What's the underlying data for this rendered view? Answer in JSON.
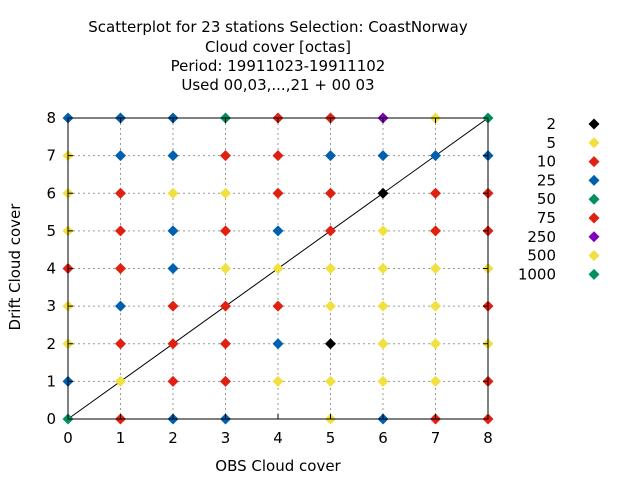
{
  "chart_data": {
    "type": "scatter",
    "title_lines": [
      "Scatterplot for   23 stations Selection: CoastNorway",
      "Cloud cover [octas]",
      "Period: 19911023-19911102",
      "Used  00,03,...,21  + 00 03"
    ],
    "xlabel": "OBS Cloud cover",
    "ylabel": "Drift Cloud cover",
    "xlim": [
      0,
      8
    ],
    "ylim": [
      0,
      8
    ],
    "xticks": [
      "0",
      "1",
      "2",
      "3",
      "4",
      "5",
      "6",
      "7",
      "8"
    ],
    "yticks": [
      "0",
      "1",
      "2",
      "3",
      "4",
      "5",
      "6",
      "7",
      "8"
    ],
    "grid": true,
    "diagonal_line": true,
    "legend_position": "right",
    "legend": [
      {
        "label": "2",
        "color": "#000000"
      },
      {
        "label": "5",
        "color": "#f0e040"
      },
      {
        "label": "10",
        "color": "#e02010"
      },
      {
        "label": "25",
        "color": "#0060b0"
      },
      {
        "label": "50",
        "color": "#009060"
      },
      {
        "label": "75",
        "color": "#e02010"
      },
      {
        "label": "250",
        "color": "#8000c0"
      },
      {
        "label": "500",
        "color": "#f0e040"
      },
      {
        "label": "1000",
        "color": "#009060"
      }
    ],
    "points": [
      {
        "x": 0,
        "y": 0,
        "c": 4
      },
      {
        "x": 1,
        "y": 0,
        "c": 2
      },
      {
        "x": 2,
        "y": 0,
        "c": 3
      },
      {
        "x": 3,
        "y": 0,
        "c": 3
      },
      {
        "x": 5,
        "y": 0,
        "c": 1
      },
      {
        "x": 6,
        "y": 0,
        "c": 3
      },
      {
        "x": 7,
        "y": 0,
        "c": 2
      },
      {
        "x": 8,
        "y": 0,
        "c": 2
      },
      {
        "x": 0,
        "y": 1,
        "c": 3
      },
      {
        "x": 1,
        "y": 1,
        "c": 1
      },
      {
        "x": 2,
        "y": 1,
        "c": 2
      },
      {
        "x": 3,
        "y": 1,
        "c": 2
      },
      {
        "x": 4,
        "y": 1,
        "c": 1
      },
      {
        "x": 5,
        "y": 1,
        "c": 1
      },
      {
        "x": 6,
        "y": 1,
        "c": 1
      },
      {
        "x": 7,
        "y": 1,
        "c": 1
      },
      {
        "x": 8,
        "y": 1,
        "c": 2
      },
      {
        "x": 0,
        "y": 2,
        "c": 1
      },
      {
        "x": 1,
        "y": 2,
        "c": 2
      },
      {
        "x": 2,
        "y": 2,
        "c": 2
      },
      {
        "x": 3,
        "y": 2,
        "c": 2
      },
      {
        "x": 4,
        "y": 2,
        "c": 3
      },
      {
        "x": 5,
        "y": 2,
        "c": 0
      },
      {
        "x": 6,
        "y": 2,
        "c": 1
      },
      {
        "x": 7,
        "y": 2,
        "c": 1
      },
      {
        "x": 8,
        "y": 2,
        "c": 1
      },
      {
        "x": 0,
        "y": 3,
        "c": 1
      },
      {
        "x": 1,
        "y": 3,
        "c": 3
      },
      {
        "x": 2,
        "y": 3,
        "c": 2
      },
      {
        "x": 3,
        "y": 3,
        "c": 2
      },
      {
        "x": 4,
        "y": 3,
        "c": 2
      },
      {
        "x": 5,
        "y": 3,
        "c": 1
      },
      {
        "x": 6,
        "y": 3,
        "c": 1
      },
      {
        "x": 7,
        "y": 3,
        "c": 1
      },
      {
        "x": 8,
        "y": 3,
        "c": 2
      },
      {
        "x": 0,
        "y": 4,
        "c": 2
      },
      {
        "x": 1,
        "y": 4,
        "c": 2
      },
      {
        "x": 2,
        "y": 4,
        "c": 3
      },
      {
        "x": 3,
        "y": 4,
        "c": 1
      },
      {
        "x": 4,
        "y": 4,
        "c": 1
      },
      {
        "x": 5,
        "y": 4,
        "c": 1
      },
      {
        "x": 6,
        "y": 4,
        "c": 1
      },
      {
        "x": 7,
        "y": 4,
        "c": 1
      },
      {
        "x": 8,
        "y": 4,
        "c": 1
      },
      {
        "x": 0,
        "y": 5,
        "c": 1
      },
      {
        "x": 1,
        "y": 5,
        "c": 2
      },
      {
        "x": 2,
        "y": 5,
        "c": 3
      },
      {
        "x": 3,
        "y": 5,
        "c": 2
      },
      {
        "x": 4,
        "y": 5,
        "c": 3
      },
      {
        "x": 5,
        "y": 5,
        "c": 2
      },
      {
        "x": 6,
        "y": 5,
        "c": 1
      },
      {
        "x": 7,
        "y": 5,
        "c": 2
      },
      {
        "x": 8,
        "y": 5,
        "c": 2
      },
      {
        "x": 0,
        "y": 6,
        "c": 1
      },
      {
        "x": 1,
        "y": 6,
        "c": 2
      },
      {
        "x": 2,
        "y": 6,
        "c": 1
      },
      {
        "x": 3,
        "y": 6,
        "c": 1
      },
      {
        "x": 4,
        "y": 6,
        "c": 2
      },
      {
        "x": 5,
        "y": 6,
        "c": 2
      },
      {
        "x": 6,
        "y": 6,
        "c": 0
      },
      {
        "x": 7,
        "y": 6,
        "c": 2
      },
      {
        "x": 8,
        "y": 6,
        "c": 2
      },
      {
        "x": 0,
        "y": 7,
        "c": 1
      },
      {
        "x": 1,
        "y": 7,
        "c": 3
      },
      {
        "x": 2,
        "y": 7,
        "c": 3
      },
      {
        "x": 3,
        "y": 7,
        "c": 2
      },
      {
        "x": 4,
        "y": 7,
        "c": 2
      },
      {
        "x": 5,
        "y": 7,
        "c": 3
      },
      {
        "x": 6,
        "y": 7,
        "c": 3
      },
      {
        "x": 7,
        "y": 7,
        "c": 3
      },
      {
        "x": 8,
        "y": 7,
        "c": 3
      },
      {
        "x": 0,
        "y": 8,
        "c": 3
      },
      {
        "x": 1,
        "y": 8,
        "c": 3
      },
      {
        "x": 2,
        "y": 8,
        "c": 3
      },
      {
        "x": 3,
        "y": 8,
        "c": 4
      },
      {
        "x": 4,
        "y": 8,
        "c": 2
      },
      {
        "x": 5,
        "y": 8,
        "c": 2
      },
      {
        "x": 6,
        "y": 8,
        "c": 6
      },
      {
        "x": 7,
        "y": 8,
        "c": 1
      },
      {
        "x": 8,
        "y": 8,
        "c": 4
      }
    ]
  }
}
